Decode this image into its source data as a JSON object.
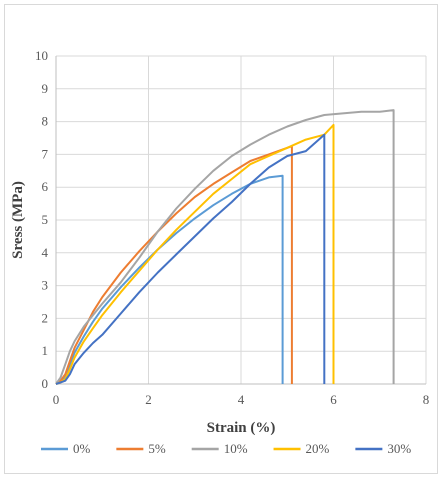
{
  "chart_data": {
    "type": "line",
    "xlabel": "Strain (%)",
    "ylabel": "Sress (MPa)",
    "xlim": [
      0,
      8
    ],
    "ylim": [
      0,
      10
    ],
    "x_ticks": [
      "0",
      "2",
      "4",
      "6",
      "8"
    ],
    "y_ticks": [
      "0",
      "1",
      "2",
      "3",
      "4",
      "5",
      "6",
      "7",
      "8",
      "9",
      "10"
    ],
    "grid": true,
    "legend_position": "bottom",
    "series": [
      {
        "name": "0%",
        "color": "#5B9BD5",
        "x": [
          0,
          0.1,
          0.2,
          0.3,
          0.4,
          0.6,
          0.8,
          1.0,
          1.4,
          1.8,
          2.2,
          2.6,
          3.0,
          3.4,
          3.8,
          4.2,
          4.6,
          4.9,
          4.9
        ],
        "y": [
          0,
          0.05,
          0.2,
          0.6,
          0.95,
          1.45,
          1.9,
          2.3,
          2.95,
          3.55,
          4.1,
          4.6,
          5.05,
          5.45,
          5.8,
          6.1,
          6.3,
          6.35,
          0
        ]
      },
      {
        "name": "5%",
        "color": "#ED7D31",
        "x": [
          0,
          0.1,
          0.2,
          0.3,
          0.4,
          0.6,
          0.8,
          1.0,
          1.4,
          1.8,
          2.2,
          2.6,
          3.0,
          3.4,
          3.8,
          4.2,
          4.6,
          5.0,
          5.1,
          5.1
        ],
        "y": [
          0,
          0.1,
          0.3,
          0.7,
          1.1,
          1.65,
          2.2,
          2.65,
          3.4,
          4.05,
          4.65,
          5.2,
          5.7,
          6.1,
          6.45,
          6.8,
          7.0,
          7.2,
          7.25,
          0
        ]
      },
      {
        "name": "10%",
        "color": "#A5A5A5",
        "x": [
          0,
          0.1,
          0.2,
          0.3,
          0.4,
          0.6,
          0.8,
          1.0,
          1.4,
          1.8,
          2.2,
          2.6,
          3.0,
          3.4,
          3.8,
          4.2,
          4.6,
          5.0,
          5.4,
          5.8,
          6.2,
          6.6,
          7.0,
          7.3,
          7.3
        ],
        "y": [
          0,
          0.2,
          0.6,
          1.0,
          1.3,
          1.75,
          2.1,
          2.45,
          3.1,
          3.85,
          4.65,
          5.35,
          5.95,
          6.5,
          6.95,
          7.3,
          7.6,
          7.85,
          8.05,
          8.2,
          8.25,
          8.3,
          8.3,
          8.35,
          0
        ]
      },
      {
        "name": "20%",
        "color": "#FFC000",
        "x": [
          0,
          0.1,
          0.2,
          0.3,
          0.4,
          0.6,
          0.8,
          1.0,
          1.4,
          1.8,
          2.2,
          2.6,
          3.0,
          3.4,
          3.8,
          4.2,
          4.6,
          5.0,
          5.4,
          5.8,
          6.0,
          6.0
        ],
        "y": [
          0,
          0.05,
          0.15,
          0.45,
          0.8,
          1.3,
          1.7,
          2.1,
          2.8,
          3.45,
          4.1,
          4.7,
          5.25,
          5.8,
          6.25,
          6.7,
          6.95,
          7.2,
          7.45,
          7.6,
          7.9,
          0
        ]
      },
      {
        "name": "30%",
        "color": "#4472C4",
        "x": [
          0,
          0.1,
          0.2,
          0.3,
          0.4,
          0.6,
          0.8,
          1.0,
          1.4,
          1.8,
          2.2,
          2.6,
          3.0,
          3.4,
          3.8,
          4.2,
          4.6,
          5.0,
          5.4,
          5.8,
          5.8
        ],
        "y": [
          0,
          0.05,
          0.1,
          0.3,
          0.6,
          0.95,
          1.25,
          1.5,
          2.15,
          2.8,
          3.4,
          3.95,
          4.5,
          5.05,
          5.55,
          6.1,
          6.6,
          6.95,
          7.1,
          7.6,
          0
        ]
      }
    ]
  }
}
